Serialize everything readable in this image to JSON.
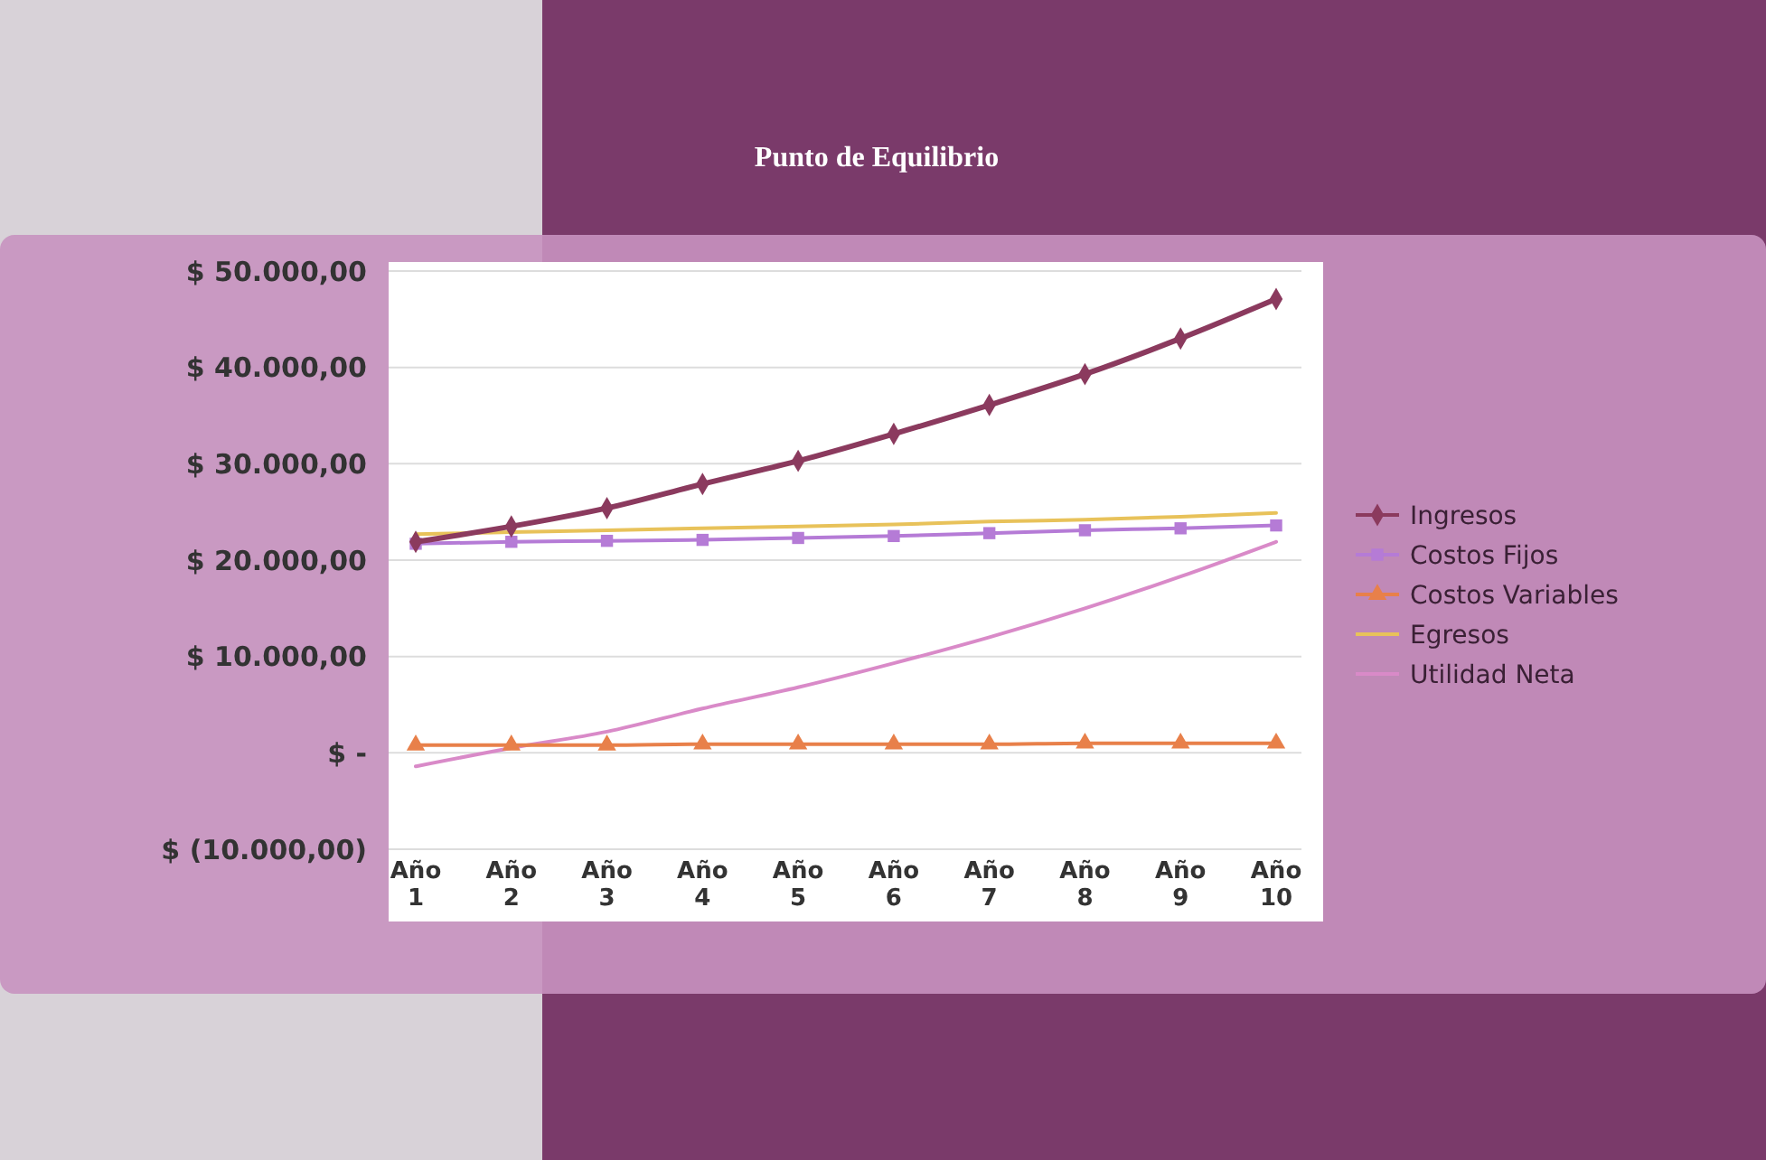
{
  "chart_data": {
    "type": "line",
    "title": "Punto de Equilibrio",
    "categories": [
      "Año 1",
      "Año 2",
      "Año 3",
      "Año 4",
      "Año 5",
      "Año 6",
      "Año 7",
      "Año 8",
      "Año 9",
      "Año 10"
    ],
    "series": [
      {
        "name": "Ingresos",
        "color": "#8b3a5e",
        "marker": "diamond",
        "values": [
          21900,
          23500,
          25400,
          27900,
          30300,
          33100,
          36100,
          39300,
          43000,
          47100
        ]
      },
      {
        "name": "Costos Fijos",
        "color": "#b57bd6",
        "marker": "square",
        "values": [
          21700,
          21900,
          22000,
          22100,
          22300,
          22500,
          22800,
          23100,
          23300,
          23600
        ]
      },
      {
        "name": "Costos Variables",
        "color": "#e8804a",
        "marker": "triangle",
        "values": [
          800,
          800,
          800,
          900,
          900,
          900,
          900,
          1000,
          1000,
          1000
        ]
      },
      {
        "name": "Egresos",
        "color": "#e8c25a",
        "marker": "none",
        "values": [
          22700,
          22900,
          23100,
          23300,
          23500,
          23700,
          24000,
          24200,
          24500,
          24900
        ]
      },
      {
        "name": "Utilidad Neta",
        "color": "#d98ac8",
        "marker": "none",
        "values": [
          -1400,
          500,
          2200,
          4600,
          6800,
          9300,
          12000,
          15000,
          18300,
          21900
        ]
      }
    ],
    "ylim": [
      -10000,
      50000
    ],
    "yticks": [
      {
        "value": 50000,
        "label": "$ 50.000,00"
      },
      {
        "value": 40000,
        "label": "$ 40.000,00"
      },
      {
        "value": 30000,
        "label": "$ 30.000,00"
      },
      {
        "value": 20000,
        "label": "$ 20.000,00"
      },
      {
        "value": 10000,
        "label": "$ 10.000,00"
      },
      {
        "value": 0,
        "label": "$ -"
      },
      {
        "value": -10000,
        "label": "$ (10.000,00)"
      }
    ],
    "grid": "y",
    "legend": "right"
  }
}
